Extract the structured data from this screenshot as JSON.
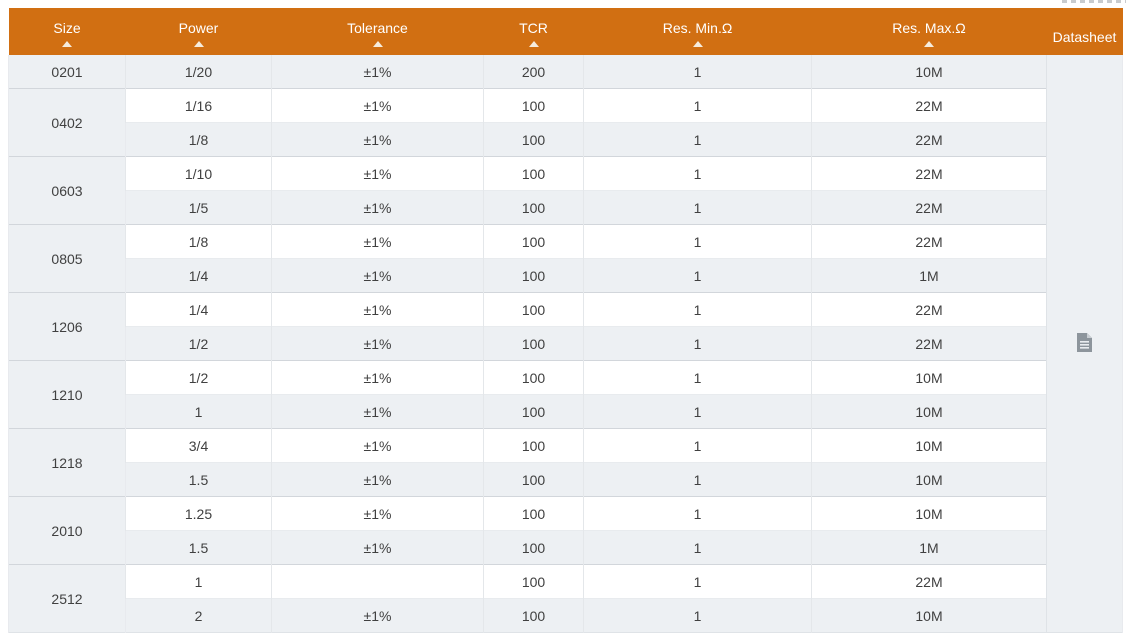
{
  "header": {
    "columns": [
      {
        "label": "Size",
        "sortable": true
      },
      {
        "label": "Power",
        "sortable": true
      },
      {
        "label": "Tolerance",
        "sortable": true
      },
      {
        "label": "TCR",
        "sortable": true
      },
      {
        "label": "Res. Min.Ω",
        "sortable": true
      },
      {
        "label": "Res. Max.Ω",
        "sortable": true
      },
      {
        "label": "Datasheet",
        "sortable": false
      }
    ],
    "sort_direction": "asc"
  },
  "table": {
    "groups": [
      {
        "size": "0201",
        "rows": [
          {
            "power": "1/20",
            "tolerance": "±1%",
            "tcr": "200",
            "res_min": "1",
            "res_max": "10M"
          }
        ]
      },
      {
        "size": "0402",
        "rows": [
          {
            "power": "1/16",
            "tolerance": "±1%",
            "tcr": "100",
            "res_min": "1",
            "res_max": "22M"
          },
          {
            "power": "1/8",
            "tolerance": "±1%",
            "tcr": "100",
            "res_min": "1",
            "res_max": "22M"
          }
        ]
      },
      {
        "size": "0603",
        "rows": [
          {
            "power": "1/10",
            "tolerance": "±1%",
            "tcr": "100",
            "res_min": "1",
            "res_max": "22M"
          },
          {
            "power": "1/5",
            "tolerance": "±1%",
            "tcr": "100",
            "res_min": "1",
            "res_max": "22M"
          }
        ]
      },
      {
        "size": "0805",
        "rows": [
          {
            "power": "1/8",
            "tolerance": "±1%",
            "tcr": "100",
            "res_min": "1",
            "res_max": "22M"
          },
          {
            "power": "1/4",
            "tolerance": "±1%",
            "tcr": "100",
            "res_min": "1",
            "res_max": "1M"
          }
        ]
      },
      {
        "size": "1206",
        "rows": [
          {
            "power": "1/4",
            "tolerance": "±1%",
            "tcr": "100",
            "res_min": "1",
            "res_max": "22M"
          },
          {
            "power": "1/2",
            "tolerance": "±1%",
            "tcr": "100",
            "res_min": "1",
            "res_max": "22M"
          }
        ]
      },
      {
        "size": "1210",
        "rows": [
          {
            "power": "1/2",
            "tolerance": "±1%",
            "tcr": "100",
            "res_min": "1",
            "res_max": "10M"
          },
          {
            "power": "1",
            "tolerance": "±1%",
            "tcr": "100",
            "res_min": "1",
            "res_max": "10M"
          }
        ]
      },
      {
        "size": "1218",
        "rows": [
          {
            "power": "3/4",
            "tolerance": "±1%",
            "tcr": "100",
            "res_min": "1",
            "res_max": "10M"
          },
          {
            "power": "1.5",
            "tolerance": "±1%",
            "tcr": "100",
            "res_min": "1",
            "res_max": "10M"
          }
        ]
      },
      {
        "size": "2010",
        "rows": [
          {
            "power": "1.25",
            "tolerance": "±1%",
            "tcr": "100",
            "res_min": "1",
            "res_max": "10M"
          },
          {
            "power": "1.5",
            "tolerance": "±1%",
            "tcr": "100",
            "res_min": "1",
            "res_max": "1M"
          }
        ]
      },
      {
        "size": "2512",
        "rows": [
          {
            "power": "1",
            "tolerance": "",
            "tcr": "100",
            "res_min": "1",
            "res_max": "22M"
          },
          {
            "power": "2",
            "tolerance": "±1%",
            "tcr": "100",
            "res_min": "1",
            "res_max": "10M"
          }
        ]
      }
    ],
    "datasheet_icon": "document-icon"
  },
  "colors": {
    "header_bg": "#d16f12",
    "header_text": "#ffffff",
    "row_alt_bg": "#edf0f3",
    "row_bg": "#ffffff",
    "body_text": "#404040",
    "icon_gray": "#8d959c"
  }
}
